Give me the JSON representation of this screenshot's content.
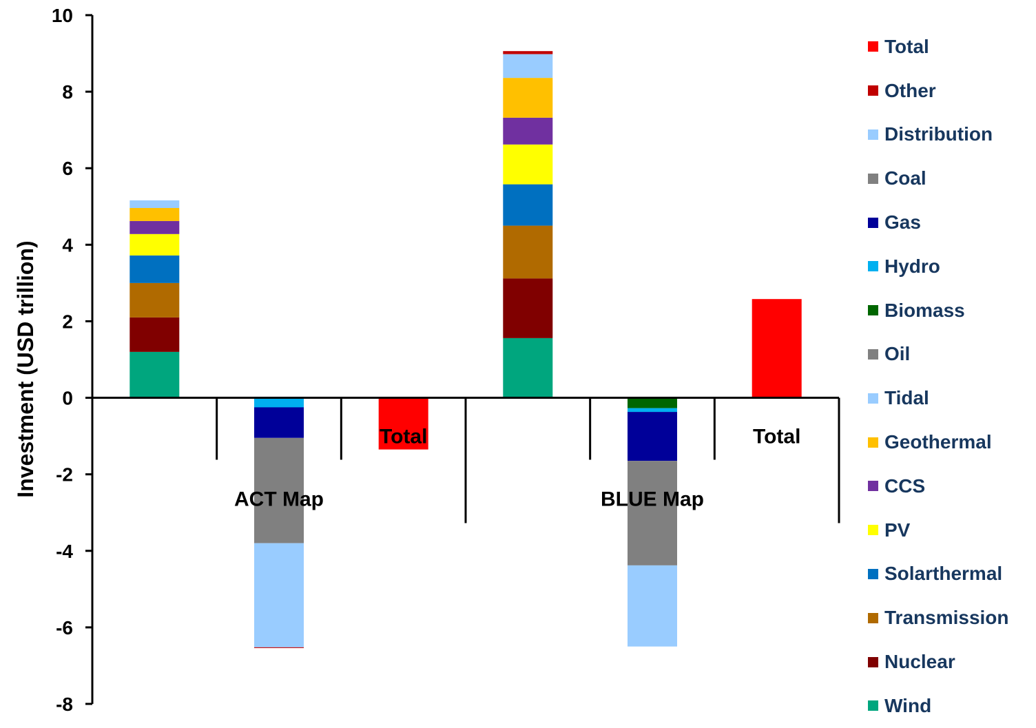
{
  "chart_data": {
    "type": "bar",
    "stacked": true,
    "title": "",
    "ylabel": "Investment (USD trillion)",
    "xlabel": "",
    "ylim": [
      -8,
      10
    ],
    "yticks": [
      -8,
      -6,
      -4,
      -2,
      0,
      2,
      4,
      6,
      8,
      10
    ],
    "grid": false,
    "legend_position": "right",
    "groups": [
      {
        "label": "ACT Map",
        "slots": 3
      },
      {
        "label": "BLUE Map",
        "slots": 3
      }
    ],
    "bars": [
      {
        "group": 0,
        "label": "",
        "segments": [
          {
            "series": "Wind",
            "value": 1.2
          },
          {
            "series": "Nuclear",
            "value": 0.9
          },
          {
            "series": "Transmission",
            "value": 0.9
          },
          {
            "series": "Solarthermal",
            "value": 0.72
          },
          {
            "series": "PV",
            "value": 0.56
          },
          {
            "series": "CCS",
            "value": 0.34
          },
          {
            "series": "Geothermal",
            "value": 0.34
          },
          {
            "series": "Distribution",
            "value": 0.2
          }
        ]
      },
      {
        "group": 0,
        "label": "",
        "segments": [
          {
            "series": "Hydro",
            "value": -0.25
          },
          {
            "series": "Gas",
            "value": -0.8
          },
          {
            "series": "Coal",
            "value": -2.75
          },
          {
            "series": "Tidal",
            "value": -2.72
          },
          {
            "series": "Other",
            "value": -0.02
          }
        ]
      },
      {
        "group": 0,
        "label": "Total",
        "segments": [
          {
            "series": "Total",
            "value": -1.35
          }
        ]
      },
      {
        "group": 1,
        "label": "",
        "segments": [
          {
            "series": "Wind",
            "value": 1.56
          },
          {
            "series": "Nuclear",
            "value": 1.56
          },
          {
            "series": "Transmission",
            "value": 1.38
          },
          {
            "series": "Solarthermal",
            "value": 1.08
          },
          {
            "series": "PV",
            "value": 1.04
          },
          {
            "series": "CCS",
            "value": 0.7
          },
          {
            "series": "Geothermal",
            "value": 1.04
          },
          {
            "series": "Distribution",
            "value": 0.62
          },
          {
            "series": "Other",
            "value": 0.08
          }
        ]
      },
      {
        "group": 1,
        "label": "",
        "segments": [
          {
            "series": "Biomass",
            "value": -0.27
          },
          {
            "series": "Hydro",
            "value": -0.1
          },
          {
            "series": "Gas",
            "value": -1.28
          },
          {
            "series": "Coal",
            "value": -2.73
          },
          {
            "series": "Tidal",
            "value": -2.12
          }
        ]
      },
      {
        "group": 1,
        "label": "Total",
        "segments": [
          {
            "series": "Total",
            "value": 2.58
          }
        ]
      }
    ],
    "series": [
      {
        "name": "Total",
        "color": "#FF0000"
      },
      {
        "name": "Other",
        "color": "#C00000"
      },
      {
        "name": "Distribution",
        "color": "#99CCFF"
      },
      {
        "name": "Coal",
        "color": "#808080"
      },
      {
        "name": "Gas",
        "color": "#000099"
      },
      {
        "name": "Hydro",
        "color": "#00B0F0"
      },
      {
        "name": "Biomass",
        "color": "#006600"
      },
      {
        "name": "Oil",
        "color": "#808080"
      },
      {
        "name": "Tidal",
        "color": "#99CCFF"
      },
      {
        "name": "Geothermal",
        "color": "#FFC000"
      },
      {
        "name": "CCS",
        "color": "#7030A0"
      },
      {
        "name": "PV",
        "color": "#FFFF00"
      },
      {
        "name": "Solarthermal",
        "color": "#0070C0"
      },
      {
        "name": "Transmission",
        "color": "#B06A00"
      },
      {
        "name": "Nuclear",
        "color": "#800000"
      },
      {
        "name": "Wind",
        "color": "#00A67E"
      }
    ],
    "legend_text_color": "#17375E"
  }
}
